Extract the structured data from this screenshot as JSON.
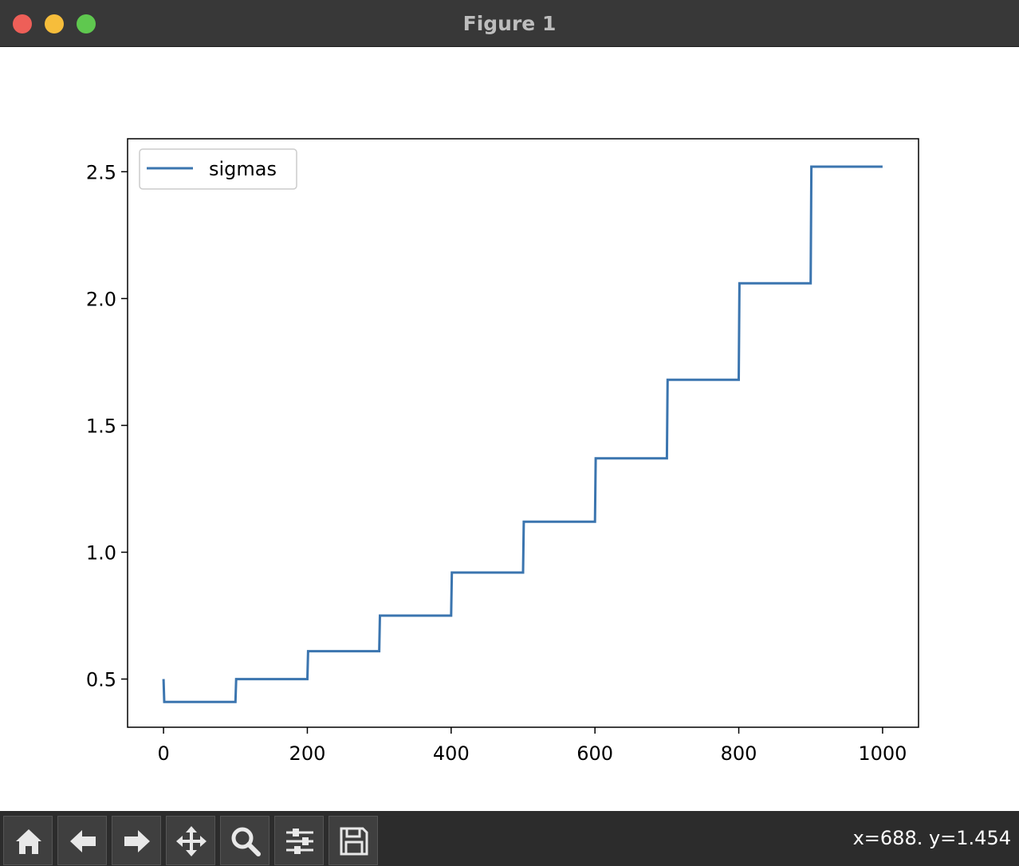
{
  "window": {
    "title": "Figure 1"
  },
  "toolbar": {
    "buttons": [
      {
        "name": "home-button",
        "icon": "home-icon"
      },
      {
        "name": "back-button",
        "icon": "arrow-left-icon"
      },
      {
        "name": "forward-button",
        "icon": "arrow-right-icon"
      },
      {
        "name": "pan-button",
        "icon": "move-icon"
      },
      {
        "name": "zoom-button",
        "icon": "magnifier-icon"
      },
      {
        "name": "configure-subplots-button",
        "icon": "sliders-icon"
      },
      {
        "name": "save-button",
        "icon": "floppy-disk-icon"
      }
    ],
    "coords": "x=688. y=1.454"
  },
  "chart_data": {
    "type": "line",
    "title": "",
    "xlabel": "",
    "ylabel": "",
    "xlim": [
      -50,
      1050
    ],
    "ylim": [
      0.31,
      2.63
    ],
    "xticks": [
      0,
      200,
      400,
      600,
      800,
      1000
    ],
    "xtick_labels": [
      "0",
      "200",
      "400",
      "600",
      "800",
      "1000"
    ],
    "yticks": [
      0.5,
      1.0,
      1.5,
      2.0,
      2.5
    ],
    "ytick_labels": [
      "0.5",
      "1.0",
      "1.5",
      "2.0",
      "2.5"
    ],
    "grid": false,
    "legend_position": "top-left",
    "series": [
      {
        "name": "sigmas",
        "color": "#3b75af",
        "x": [
          0,
          1,
          100,
          101,
          200,
          201,
          300,
          301,
          400,
          401,
          500,
          501,
          600,
          601,
          700,
          701,
          800,
          801,
          900,
          901,
          1000
        ],
        "y": [
          0.5,
          0.41,
          0.41,
          0.5,
          0.5,
          0.61,
          0.61,
          0.75,
          0.75,
          0.92,
          0.92,
          1.12,
          1.12,
          1.37,
          1.37,
          1.68,
          1.68,
          2.06,
          2.06,
          2.52,
          2.52
        ]
      }
    ]
  }
}
